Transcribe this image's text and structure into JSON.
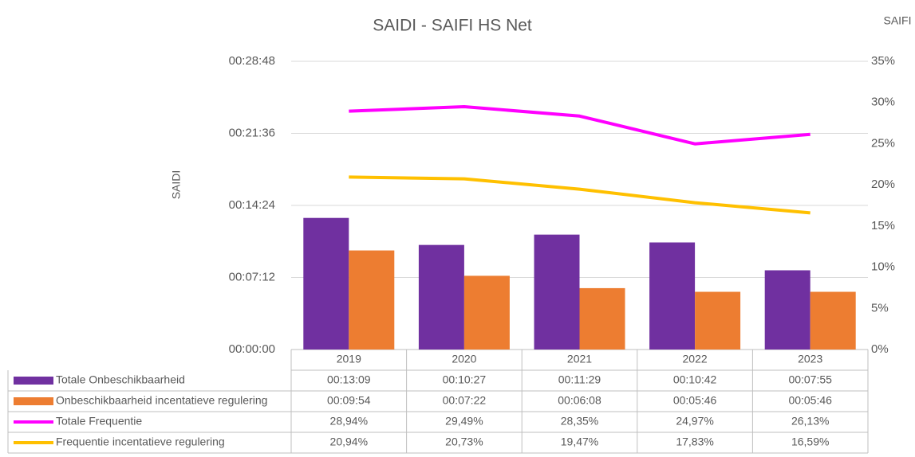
{
  "chart_data": {
    "type": "bar",
    "title": "SAIDI - SAIFI HS Net",
    "ylabel": "SAIDI",
    "y2label": "SAIFI",
    "categories": [
      "2019",
      "2020",
      "2021",
      "2022",
      "2023"
    ],
    "ylim": [
      0,
      1728
    ],
    "yticks": [
      {
        "value": 0,
        "label": "00:00:00"
      },
      {
        "value": 432,
        "label": "00:07:12"
      },
      {
        "value": 864,
        "label": "00:14:24"
      },
      {
        "value": 1296,
        "label": "00:21:36"
      },
      {
        "value": 1728,
        "label": "00:28:48"
      }
    ],
    "y2lim": [
      0,
      35
    ],
    "y2ticks": [
      {
        "value": 0,
        "label": "0%"
      },
      {
        "value": 5,
        "label": "5%"
      },
      {
        "value": 10,
        "label": "10%"
      },
      {
        "value": 15,
        "label": "15%"
      },
      {
        "value": 20,
        "label": "20%"
      },
      {
        "value": 25,
        "label": "25%"
      },
      {
        "value": 30,
        "label": "30%"
      },
      {
        "value": 35,
        "label": "35%"
      }
    ],
    "grid": true,
    "series": [
      {
        "name": "Totale Onbeschikbaarheid",
        "type": "bar",
        "color": "#7030a0",
        "values": [
          789,
          627,
          689,
          642,
          475
        ],
        "value_labels": [
          "00:13:09",
          "00:10:27",
          "00:11:29",
          "00:10:42",
          "00:07:55"
        ]
      },
      {
        "name": "Onbeschikbaarheid incentatieve regulering",
        "type": "bar",
        "color": "#ed7d31",
        "values": [
          594,
          442,
          368,
          346,
          346
        ],
        "value_labels": [
          "00:09:54",
          "00:07:22",
          "00:06:08",
          "00:05:46",
          "00:05:46"
        ]
      },
      {
        "name": "Totale Frequentie",
        "type": "line",
        "axis": "y2",
        "color": "#ff00ff",
        "values": [
          28.94,
          29.49,
          28.35,
          24.97,
          26.13
        ],
        "value_labels": [
          "28,94%",
          "29,49%",
          "28,35%",
          "24,97%",
          "26,13%"
        ]
      },
      {
        "name": "Frequentie incentatieve regulering",
        "type": "line",
        "axis": "y2",
        "color": "#ffc000",
        "values": [
          20.94,
          20.73,
          19.47,
          17.83,
          16.59
        ],
        "value_labels": [
          "20,94%",
          "20,73%",
          "19,47%",
          "17,83%",
          "16,59%"
        ]
      }
    ]
  }
}
